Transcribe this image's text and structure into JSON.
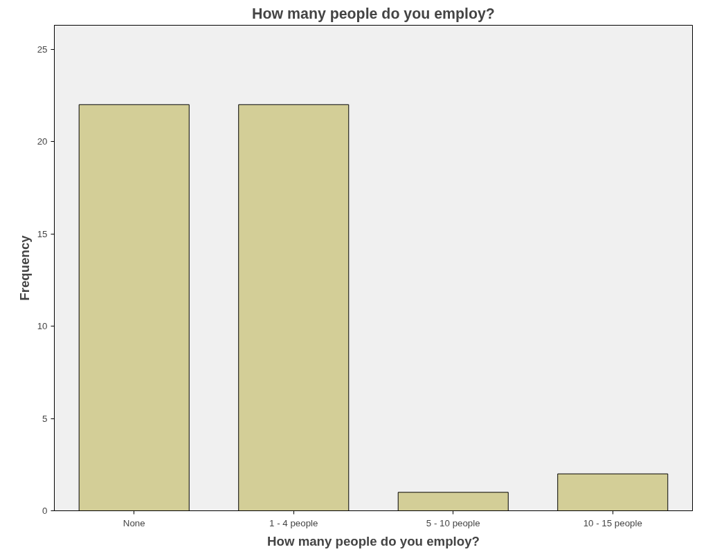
{
  "chart_data": {
    "type": "bar",
    "title": "How many people do you employ?",
    "xlabel": "How many people do you employ?",
    "ylabel": "Frequency",
    "categories": [
      "None",
      "1 - 4 people",
      "5 - 10 people",
      "10 - 15 people"
    ],
    "values": [
      22,
      22,
      1,
      2
    ],
    "color": "#d3ce97",
    "ylim": [
      0,
      26.3
    ],
    "yticks": [
      0,
      5,
      10,
      15,
      20,
      25
    ],
    "grid": false
  }
}
